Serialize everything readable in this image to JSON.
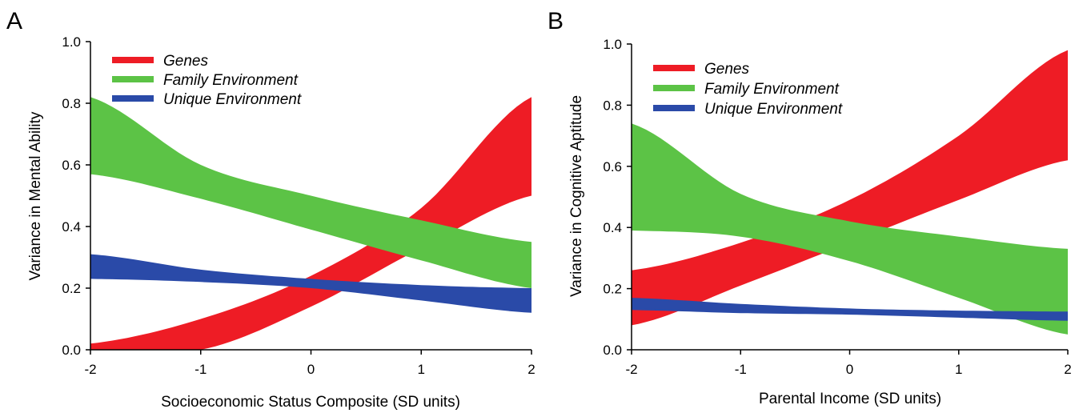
{
  "chart_data": [
    {
      "panel": "A",
      "type": "area",
      "xlabel": "Socioeconomic Status Composite (SD units)",
      "ylabel": "Variance in Mental Ability",
      "xlim": [
        -2,
        2
      ],
      "ylim": [
        0,
        1
      ],
      "xticks": [
        "-2",
        "-1",
        "0",
        "1",
        "2"
      ],
      "yticks": [
        "0.0",
        "0.2",
        "0.4",
        "0.6",
        "0.8",
        "1.0"
      ],
      "legend_position": "top-left",
      "series": [
        {
          "name": "Genes",
          "color": "#ee1c25",
          "x": [
            -2,
            -1,
            0,
            1,
            2
          ],
          "lower": [
            0.0,
            0.0,
            0.14,
            0.33,
            0.5
          ],
          "upper": [
            0.02,
            0.1,
            0.24,
            0.46,
            0.82
          ]
        },
        {
          "name": "Family Environment",
          "color": "#5cc346",
          "x": [
            -2,
            -1,
            0,
            1,
            2
          ],
          "lower": [
            0.57,
            0.49,
            0.39,
            0.29,
            0.2
          ],
          "upper": [
            0.82,
            0.6,
            0.5,
            0.42,
            0.35
          ]
        },
        {
          "name": "Unique Environment",
          "color": "#2a4aa8",
          "x": [
            -2,
            -1,
            0,
            1,
            2
          ],
          "lower": [
            0.23,
            0.22,
            0.2,
            0.16,
            0.12
          ],
          "upper": [
            0.31,
            0.26,
            0.23,
            0.21,
            0.2
          ]
        }
      ]
    },
    {
      "panel": "B",
      "type": "area",
      "xlabel": "Parental Income (SD units)",
      "ylabel": "Variance in Cognitive Aptitude",
      "xlim": [
        -2,
        2
      ],
      "ylim": [
        0,
        1
      ],
      "xticks": [
        "-2",
        "-1",
        "0",
        "1",
        "2"
      ],
      "yticks": [
        "0.0",
        "0.2",
        "0.4",
        "0.6",
        "0.8",
        "1.0"
      ],
      "legend_position": "top-left",
      "series": [
        {
          "name": "Genes",
          "color": "#ee1c25",
          "x": [
            -2,
            -1,
            0,
            1,
            2
          ],
          "lower": [
            0.08,
            0.21,
            0.35,
            0.49,
            0.62
          ],
          "upper": [
            0.26,
            0.35,
            0.49,
            0.7,
            0.98
          ]
        },
        {
          "name": "Family Environment",
          "color": "#5cc346",
          "x": [
            -2,
            -1,
            0,
            1,
            2
          ],
          "lower": [
            0.39,
            0.37,
            0.29,
            0.17,
            0.05
          ],
          "upper": [
            0.74,
            0.51,
            0.42,
            0.37,
            0.33
          ]
        },
        {
          "name": "Unique Environment",
          "color": "#2a4aa8",
          "x": [
            -2,
            -1,
            0,
            1,
            2
          ],
          "lower": [
            0.13,
            0.12,
            0.115,
            0.105,
            0.095
          ],
          "upper": [
            0.17,
            0.15,
            0.135,
            0.128,
            0.125
          ]
        }
      ]
    }
  ]
}
